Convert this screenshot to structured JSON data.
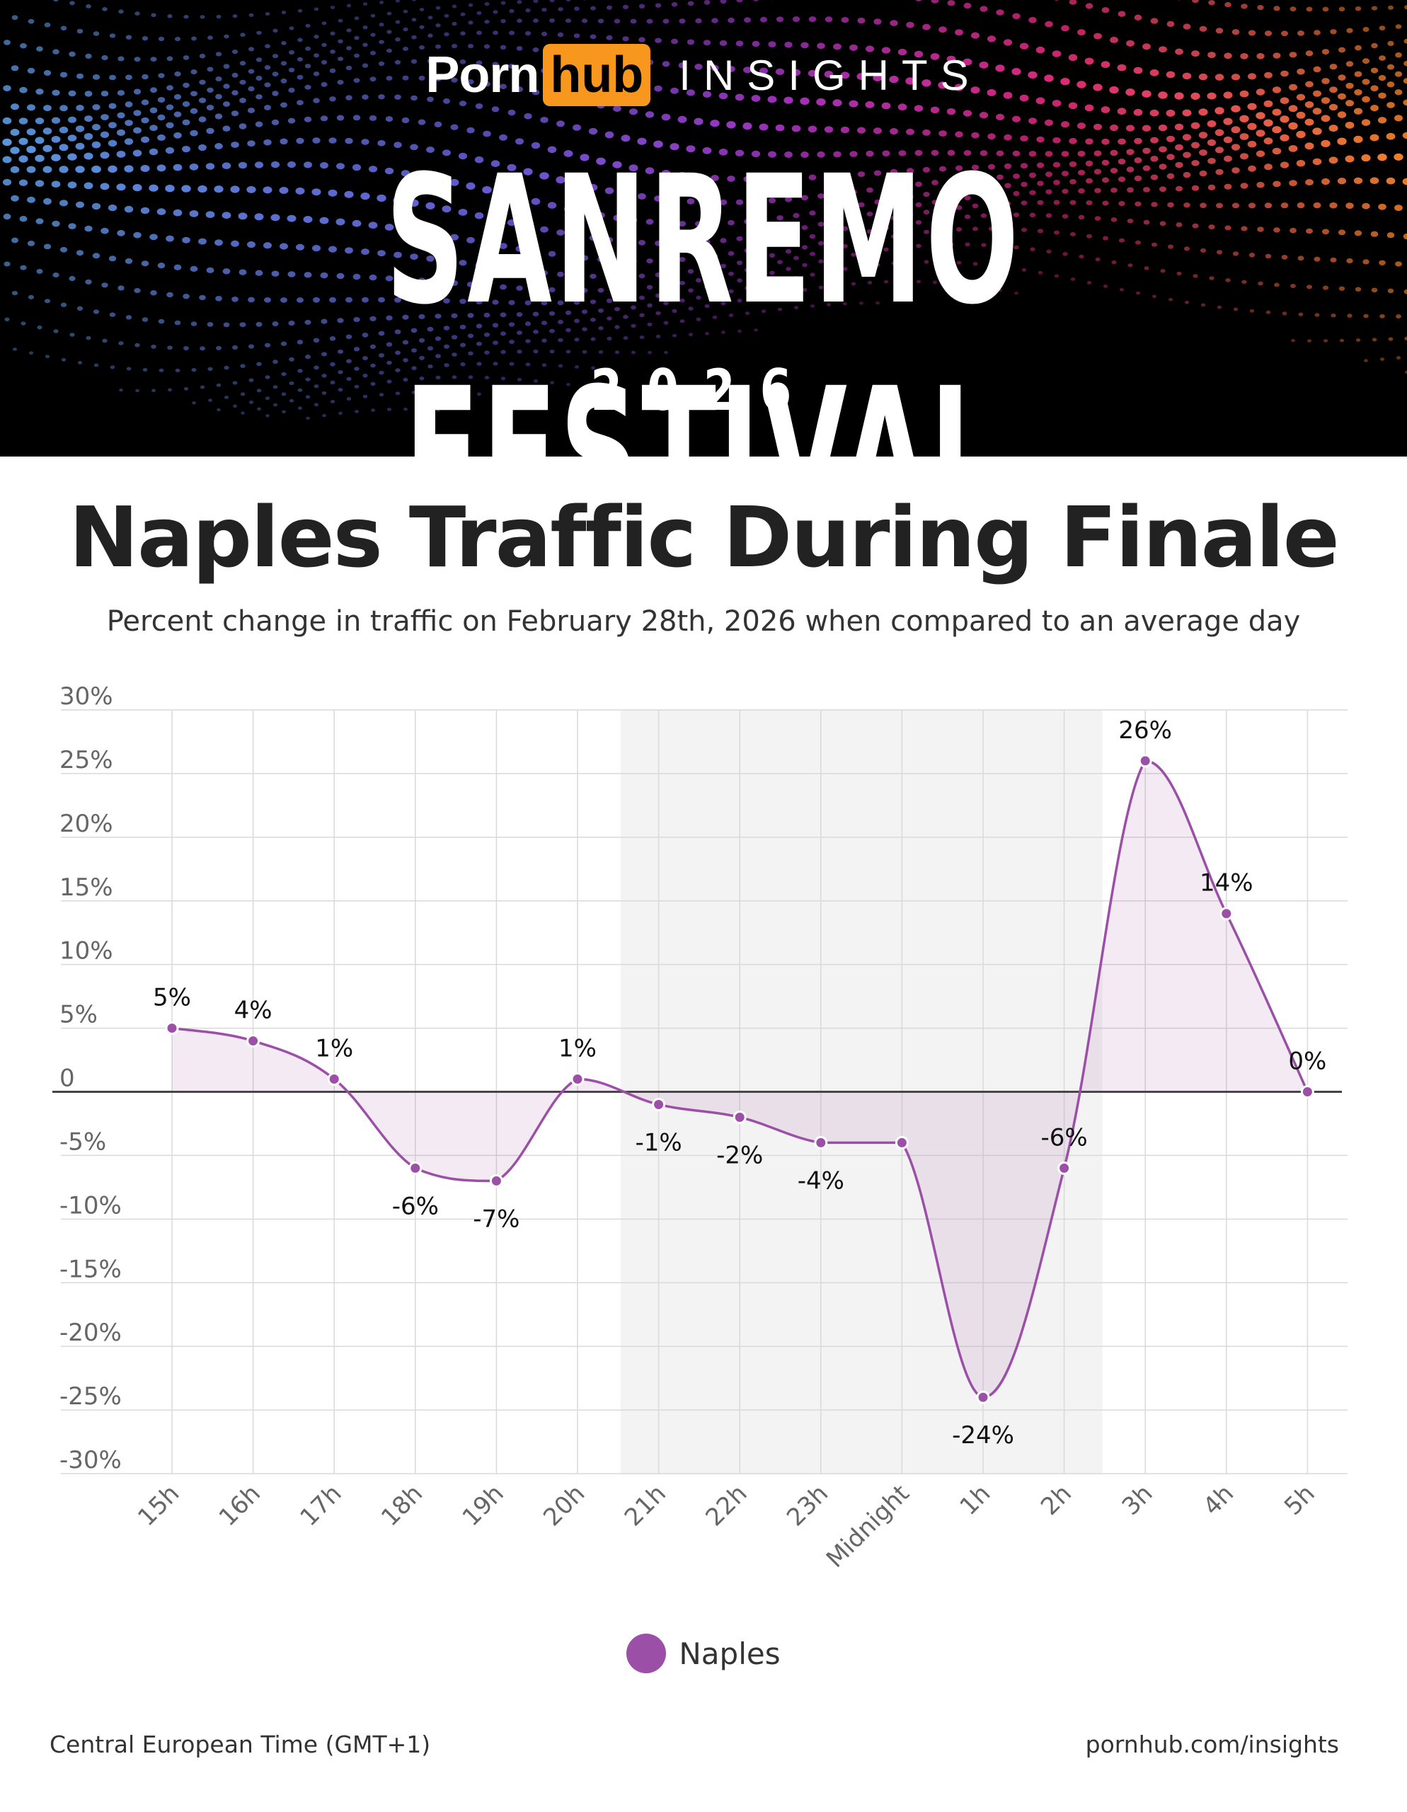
{
  "banner": {
    "logo_porn": "Porn",
    "logo_hub": "hub",
    "logo_insights": "INSIGHTS",
    "event": "SANREMO FESTIVAL",
    "year": "2026",
    "colors": {
      "accent": "#f7971d",
      "background": "#000000"
    }
  },
  "title": "Naples Traffic During Finale",
  "subtitle": "Percent change in traffic on February 28th, 2026 when compared to an average day",
  "chart_data": {
    "type": "area",
    "categories": [
      "15h",
      "16h",
      "17h",
      "18h",
      "19h",
      "20h",
      "21h",
      "22h",
      "23h",
      "Midnight",
      "1h",
      "2h",
      "3h",
      "4h",
      "5h"
    ],
    "series": [
      {
        "name": "Naples",
        "values": [
          5,
          4,
          1,
          -6,
          -7,
          1,
          -1,
          -2,
          -4,
          -4,
          -24,
          -6,
          26,
          14,
          0
        ],
        "color": "#9b4fa6"
      }
    ],
    "data_labels": [
      "5%",
      "4%",
      "1%",
      "-6%",
      "-7%",
      "1%",
      "-1%",
      "-2%",
      "-4%",
      "",
      "-24%",
      "-6%",
      "26%",
      "14%",
      "0%"
    ],
    "y_ticks": [
      30,
      25,
      20,
      15,
      10,
      5,
      0,
      -5,
      -10,
      -15,
      -20,
      -25,
      -30
    ],
    "y_tick_labels": [
      "30%",
      "25%",
      "20%",
      "15%",
      "10%",
      "5%",
      "0",
      "-5%",
      "-10%",
      "-15%",
      "-20%",
      "-25%",
      "-30%"
    ],
    "ylim": [
      -30,
      30
    ],
    "grid": true,
    "highlight_band": {
      "from_category": "21h",
      "to_category": "2h"
    },
    "legend": "bottom-center"
  },
  "footer": {
    "timezone": "Central European Time (GMT+1)",
    "url": "pornhub.com/insights"
  }
}
